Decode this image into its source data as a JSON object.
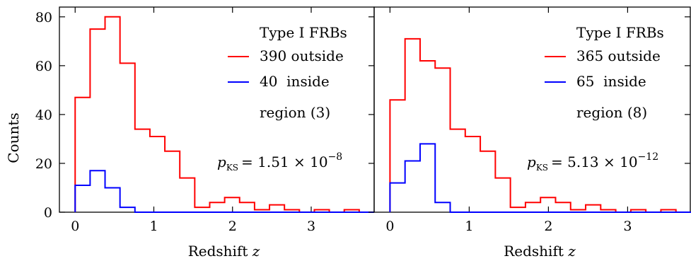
{
  "figure": {
    "ylabel": "Counts",
    "xlabel_text": "Redshift ",
    "xlabel_var": "z"
  },
  "chart_data": [
    {
      "type": "histogram",
      "panel": "left",
      "xlabel": "Redshift z",
      "ylabel": "Counts",
      "xlim": [
        -0.2,
        3.8
      ],
      "ylim": [
        0,
        84
      ],
      "xticks": [
        0,
        1,
        2,
        3
      ],
      "yticks": [
        0,
        20,
        40,
        60,
        80
      ],
      "bin_edges": [
        0.0,
        0.19,
        0.38,
        0.57,
        0.76,
        0.95,
        1.14,
        1.33,
        1.52,
        1.71,
        1.9,
        2.09,
        2.28,
        2.47,
        2.66,
        2.85,
        3.04,
        3.23,
        3.42,
        3.61,
        3.8
      ],
      "series": [
        {
          "name": "390 outside",
          "color": "#ff0000",
          "counts": [
            47,
            75,
            80,
            61,
            34,
            31,
            25,
            14,
            2,
            4,
            6,
            4,
            1,
            3,
            1,
            0,
            1,
            0,
            1,
            0
          ]
        },
        {
          "name": "40  inside",
          "color": "#0000ff",
          "counts": [
            11,
            17,
            10,
            2,
            0,
            0,
            0,
            0,
            0,
            0,
            0,
            0,
            0,
            0,
            0,
            0,
            0,
            0,
            0,
            0
          ]
        }
      ],
      "legend": {
        "title": "Type I FRBs",
        "line3": "region (3)",
        "location": "upper right"
      },
      "annotation": {
        "p_symbol": "p",
        "p_subscript": "KS",
        "value": "= 1.51 × 10",
        "exponent": "−8"
      }
    },
    {
      "type": "histogram",
      "panel": "right",
      "xlabel": "Redshift z",
      "ylabel": "Counts",
      "xlim": [
        -0.2,
        3.8
      ],
      "ylim": [
        0,
        84
      ],
      "xticks": [
        0,
        1,
        2,
        3
      ],
      "yticks": [
        0,
        20,
        40,
        60,
        80
      ],
      "bin_edges": [
        0.0,
        0.19,
        0.38,
        0.57,
        0.76,
        0.95,
        1.14,
        1.33,
        1.52,
        1.71,
        1.9,
        2.09,
        2.28,
        2.47,
        2.66,
        2.85,
        3.04,
        3.23,
        3.42,
        3.61,
        3.8
      ],
      "series": [
        {
          "name": "365 outside",
          "color": "#ff0000",
          "counts": [
            46,
            71,
            62,
            59,
            34,
            31,
            25,
            14,
            2,
            4,
            6,
            4,
            1,
            3,
            1,
            0,
            1,
            0,
            1,
            0
          ]
        },
        {
          "name": "65  inside",
          "color": "#0000ff",
          "counts": [
            12,
            21,
            28,
            4,
            0,
            0,
            0,
            0,
            0,
            0,
            0,
            0,
            0,
            0,
            0,
            0,
            0,
            0,
            0,
            0
          ]
        }
      ],
      "legend": {
        "title": "Type I FRBs",
        "line3": "region (8)",
        "location": "upper right"
      },
      "annotation": {
        "p_symbol": "p",
        "p_subscript": "KS",
        "value": "= 5.13 × 10",
        "exponent": "−12"
      }
    }
  ]
}
